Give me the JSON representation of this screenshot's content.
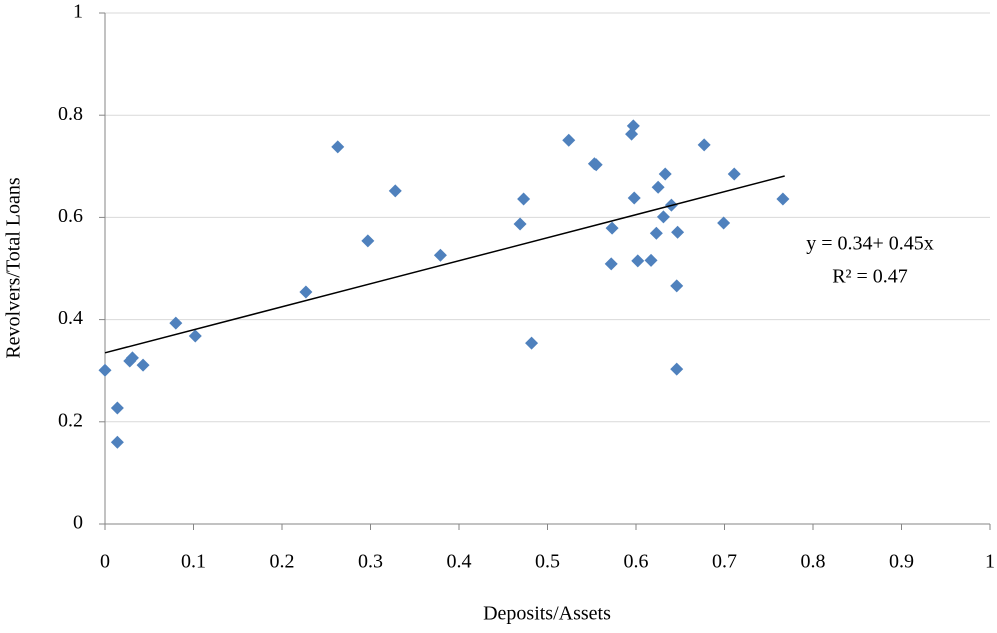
{
  "chart_data": {
    "type": "scatter",
    "x_label": "Deposits/Assets",
    "y_label": "Revolvers/Total Loans",
    "xlim": [
      0,
      1
    ],
    "xticks": [
      0,
      0.1,
      0.2,
      0.3,
      0.4,
      0.5,
      0.6,
      0.7,
      0.8,
      0.9,
      1
    ],
    "ylim": [
      0,
      1
    ],
    "yticks": [
      0,
      0.2,
      0.4,
      0.6,
      0.8,
      1
    ],
    "grid": true,
    "series": [
      {
        "color": "#4f81bd",
        "x": [
          0,
          0.014,
          0.014,
          0.028,
          0.031,
          0.043,
          0.08,
          0.102,
          0.227,
          0.263,
          0.297,
          0.328,
          0.379,
          0.469,
          0.473,
          0.482,
          0.524,
          0.553,
          0.555,
          0.595,
          0.597,
          0.573,
          0.572,
          0.598,
          0.602,
          0.631,
          0.633,
          0.617,
          0.623,
          0.625,
          0.64,
          0.646,
          0.646,
          0.647,
          0.677,
          0.699,
          0.711,
          0.766
        ],
        "y": [
          0.301,
          0.227,
          0.16,
          0.319,
          0.325,
          0.311,
          0.393,
          0.368,
          0.454,
          0.738,
          0.554,
          0.652,
          0.526,
          0.587,
          0.636,
          0.354,
          0.751,
          0.705,
          0.703,
          0.763,
          0.779,
          0.579,
          0.509,
          0.638,
          0.515,
          0.601,
          0.685,
          0.516,
          0.569,
          0.659,
          0.624,
          0.466,
          0.303,
          0.571,
          0.742,
          0.589,
          0.685,
          0.636
        ]
      }
    ],
    "trendline": {
      "color": "#000000",
      "x": [
        0,
        0.768
      ],
      "y": [
        0.335,
        0.681
      ]
    },
    "annotations": [
      "y = 0.34+  0.45x",
      "R² = 0.47"
    ]
  }
}
